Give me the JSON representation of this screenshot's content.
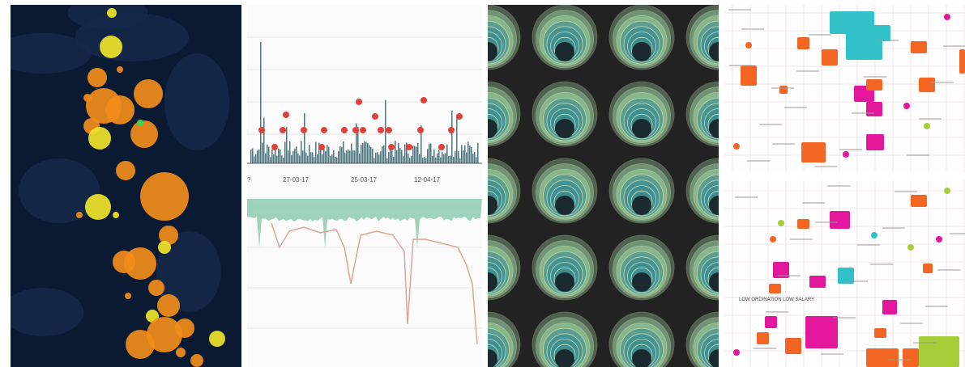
{
  "p2": {
    "xticks": [
      "?",
      "27-03-17",
      "25-03-17",
      "12-04-17"
    ]
  },
  "p4": {
    "caption": "LOW ORDINATION LOW SALARY"
  },
  "colors": {
    "map_bg": "#0b1a33",
    "bubble_orange": "#f28c1a",
    "bubble_yellow": "#f0e42a",
    "bar_teal": "#3f7b8a",
    "dot_red": "#e0413a",
    "area_green": "#7fc4a6",
    "line_pink": "#d9a79b",
    "ring_green": "#9fd7a3",
    "ring_teal": "#3d8e92",
    "rect_magenta": "#e3179b",
    "rect_orange": "#f26522",
    "rect_cyan": "#33c1c9",
    "rect_lime": "#a6ce39"
  }
}
